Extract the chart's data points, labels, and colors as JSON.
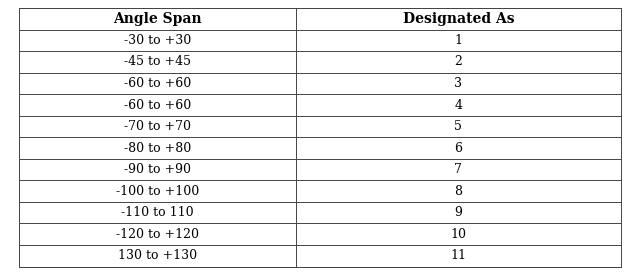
{
  "col_headers": [
    "Angle Span",
    "Designated As"
  ],
  "rows": [
    [
      "-30 to +30",
      "1"
    ],
    [
      "-45 to +45",
      "2"
    ],
    [
      "-60 to +60",
      "3"
    ],
    [
      "-60 to +60",
      "4"
    ],
    [
      "-70 to +70",
      "5"
    ],
    [
      "-80 to +80",
      "6"
    ],
    [
      "-90 to +90",
      "7"
    ],
    [
      "-100 to +100",
      "8"
    ],
    [
      "-110 to 110",
      "9"
    ],
    [
      "-120 to +120",
      "10"
    ],
    [
      "130 to +130",
      "11"
    ]
  ],
  "header_fontsize": 10,
  "cell_fontsize": 9,
  "background_color": "#ffffff",
  "line_color": "#444444",
  "header_fontweight": "bold",
  "fig_width": 6.4,
  "fig_height": 2.72,
  "col_split": 0.46
}
